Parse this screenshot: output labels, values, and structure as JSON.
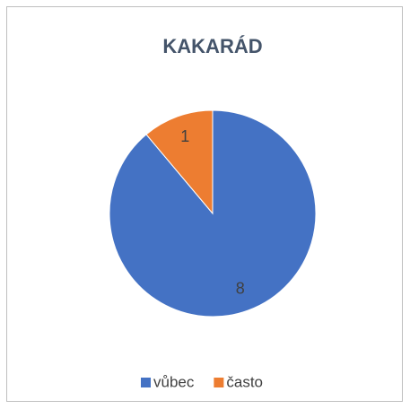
{
  "chart_data": {
    "type": "pie",
    "title": "KAKARÁD",
    "categories": [
      "vůbec",
      "často"
    ],
    "values": [
      8,
      1
    ],
    "colors": [
      "#4472c4",
      "#ed7d31"
    ],
    "legend": "bottom"
  }
}
